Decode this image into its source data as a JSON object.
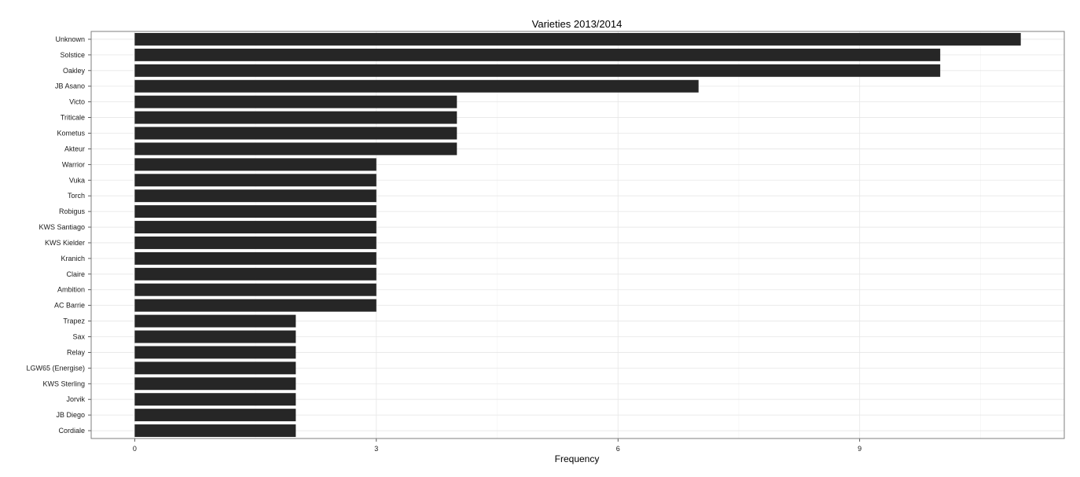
{
  "chart_data": {
    "type": "bar",
    "orientation": "horizontal",
    "title": "Varieties 2013/2014",
    "xlabel": "Frequency",
    "ylabel": "",
    "categories": [
      "Unknown",
      "Solstice",
      "Oakley",
      "JB Asano",
      "Victo",
      "Triticale",
      "Kometus",
      "Akteur",
      "Warrior",
      "Vuka",
      "Torch",
      "Robigus",
      "KWS Santiago",
      "KWS Kielder",
      "Kranich",
      "Claire",
      "Ambition",
      "AC Barrie",
      "Trapez",
      "Sax",
      "Relay",
      "LGW65 (Energise)",
      "KWS Sterling",
      "Jorvik",
      "JB Diego",
      "Cordiale"
    ],
    "values": [
      11,
      10,
      10,
      7,
      4,
      4,
      4,
      4,
      3,
      3,
      3,
      3,
      3,
      3,
      3,
      3,
      3,
      3,
      2,
      2,
      2,
      2,
      2,
      2,
      2,
      2
    ],
    "xlim": [
      -0.54,
      11.54
    ],
    "x_ticks": [
      0,
      3,
      6,
      9
    ],
    "x_tick_labels": [
      "0",
      "3",
      "6",
      "9"
    ],
    "grid": true,
    "legend": "none",
    "colors": {
      "bar": "#262626",
      "panel_border": "#7f7f7f",
      "grid_major": "#e6e6e6",
      "grid_minor": "#f2f2f2",
      "text": "#1a1a1a"
    }
  }
}
